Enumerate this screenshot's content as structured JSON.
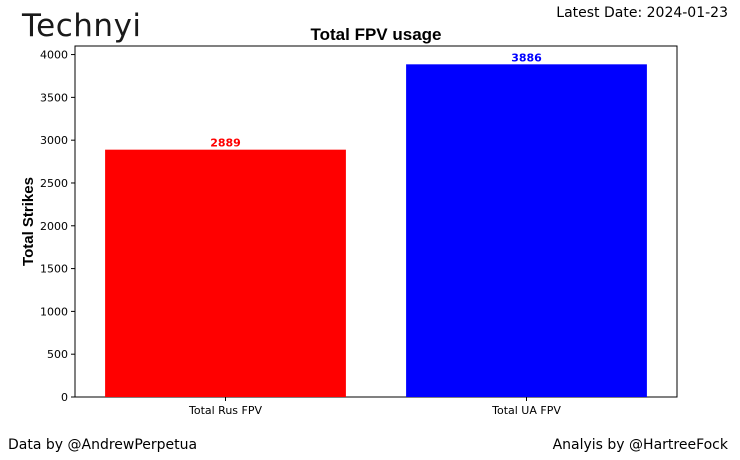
{
  "branding": {
    "logo_text": "Technyi",
    "latest_date": "Latest Date: 2024-01-23",
    "data_credit": "Data by @AndrewPerpetua",
    "analysis_credit": "Analyis by @HartreeFock"
  },
  "chart_data": {
    "type": "bar",
    "title": "Total FPV usage",
    "xlabel": "",
    "ylabel": "Total Strikes",
    "categories": [
      "Total Rus FPV",
      "Total UA FPV"
    ],
    "values": [
      2889,
      3886
    ],
    "bar_colors": [
      "#ff0000",
      "#0000ff"
    ],
    "data_labels": [
      "2889",
      "3886"
    ],
    "ylim": [
      0,
      4100
    ],
    "yticks": [
      0,
      500,
      1000,
      1500,
      2000,
      2500,
      3000,
      3500,
      4000
    ],
    "grid": false,
    "legend": "none"
  }
}
